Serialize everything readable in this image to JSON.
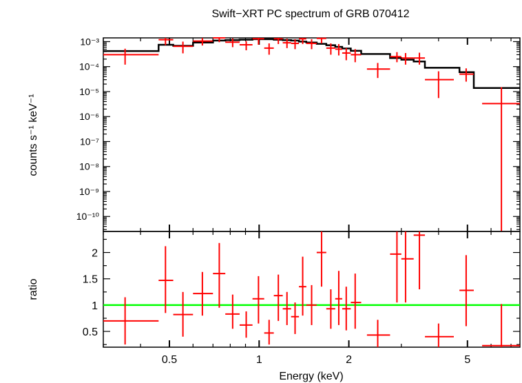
{
  "chart_data": {
    "type": "scatter",
    "title": "Swift−XRT PC spectrum of GRB 070412",
    "xlabel": "Energy (keV)",
    "x_scale": "log",
    "xlim": [
      0.3,
      7.5
    ],
    "x_ticks": [
      {
        "value": 0.5,
        "label": "0.5"
      },
      {
        "value": 1,
        "label": "1"
      },
      {
        "value": 2,
        "label": "2"
      },
      {
        "value": 5,
        "label": "5"
      }
    ],
    "colors": {
      "data": "#ff0000",
      "model": "#000000",
      "unity": "#00ff00"
    },
    "panels": [
      {
        "name": "spectrum",
        "ylabel": "counts s⁻¹ keV⁻¹",
        "y_scale": "log",
        "ylim_log10": [
          -10.6,
          -2.85
        ],
        "y_ticks": [
          {
            "exp": -3,
            "label": "10⁻³"
          },
          {
            "exp": -4,
            "label": "10⁻⁴"
          },
          {
            "exp": -5,
            "label": "10⁻⁵"
          },
          {
            "exp": -6,
            "label": "10⁻⁶"
          },
          {
            "exp": -7,
            "label": "10⁻⁷"
          },
          {
            "exp": -8,
            "label": "10⁻⁸"
          },
          {
            "exp": -9,
            "label": "10⁻⁹"
          },
          {
            "exp": -10,
            "label": "10⁻¹⁰"
          }
        ],
        "series": [
          {
            "kind": "data",
            "points": [
              {
                "x": 0.355,
                "xlo": 0.3,
                "xhi": 0.46,
                "y": 0.0003,
                "ylo": 0.00012,
                "yhi": 0.00052
              },
              {
                "x": 0.485,
                "xlo": 0.46,
                "xhi": 0.515,
                "y": 0.0012,
                "ylo": 0.00072,
                "yhi": 0.0017
              },
              {
                "x": 0.555,
                "xlo": 0.515,
                "xhi": 0.6,
                "y": 0.00065,
                "ylo": 0.00034,
                "yhi": 0.001
              },
              {
                "x": 0.645,
                "xlo": 0.6,
                "xhi": 0.7,
                "y": 0.00105,
                "ylo": 0.0007,
                "yhi": 0.0014
              },
              {
                "x": 0.735,
                "xlo": 0.7,
                "xhi": 0.77,
                "y": 0.0016,
                "ylo": 0.00095,
                "yhi": 0.00225
              },
              {
                "x": 0.815,
                "xlo": 0.77,
                "xhi": 0.86,
                "y": 0.00095,
                "ylo": 0.0006,
                "yhi": 0.00135
              },
              {
                "x": 0.905,
                "xlo": 0.86,
                "xhi": 0.95,
                "y": 0.00075,
                "ylo": 0.00045,
                "yhi": 0.00105
              },
              {
                "x": 0.995,
                "xlo": 0.95,
                "xhi": 1.04,
                "y": 0.0013,
                "ylo": 0.00075,
                "yhi": 0.0019
              },
              {
                "x": 1.08,
                "xlo": 1.04,
                "xhi": 1.12,
                "y": 0.00055,
                "ylo": 0.0003,
                "yhi": 0.00085
              },
              {
                "x": 1.16,
                "xlo": 1.12,
                "xhi": 1.2,
                "y": 0.0013,
                "ylo": 0.0008,
                "yhi": 0.00185
              },
              {
                "x": 1.24,
                "xlo": 1.2,
                "xhi": 1.28,
                "y": 0.0009,
                "ylo": 0.00055,
                "yhi": 0.0013
              },
              {
                "x": 1.32,
                "xlo": 1.28,
                "xhi": 1.36,
                "y": 0.00085,
                "ylo": 0.0005,
                "yhi": 0.00125
              },
              {
                "x": 1.4,
                "xlo": 1.36,
                "xhi": 1.44,
                "y": 0.0013,
                "ylo": 0.0008,
                "yhi": 0.0019
              },
              {
                "x": 1.5,
                "xlo": 1.44,
                "xhi": 1.56,
                "y": 0.00085,
                "ylo": 0.0005,
                "yhi": 0.00125
              },
              {
                "x": 1.62,
                "xlo": 1.56,
                "xhi": 1.68,
                "y": 0.00135,
                "ylo": 0.00085,
                "yhi": 0.00195
              },
              {
                "x": 1.74,
                "xlo": 1.68,
                "xhi": 1.8,
                "y": 0.00055,
                "ylo": 0.0003,
                "yhi": 0.00085
              },
              {
                "x": 1.85,
                "xlo": 1.8,
                "xhi": 1.9,
                "y": 0.0005,
                "ylo": 0.00028,
                "yhi": 0.0008
              },
              {
                "x": 1.96,
                "xlo": 1.9,
                "xhi": 2.03,
                "y": 0.00035,
                "ylo": 0.00018,
                "yhi": 0.00055
              },
              {
                "x": 2.1,
                "xlo": 2.03,
                "xhi": 2.2,
                "y": 0.0003,
                "ylo": 0.00015,
                "yhi": 0.0005
              },
              {
                "x": 2.5,
                "xlo": 2.3,
                "xhi": 2.75,
                "y": 8e-05,
                "ylo": 3.5e-05,
                "yhi": 0.00014
              },
              {
                "x": 2.9,
                "xlo": 2.75,
                "xhi": 3.0,
                "y": 0.00025,
                "ylo": 0.00015,
                "yhi": 0.00038
              },
              {
                "x": 3.1,
                "xlo": 3.0,
                "xhi": 3.3,
                "y": 0.00022,
                "ylo": 0.00012,
                "yhi": 0.00035
              },
              {
                "x": 3.45,
                "xlo": 3.3,
                "xhi": 3.6,
                "y": 0.00022,
                "ylo": 0.00012,
                "yhi": 0.00036
              },
              {
                "x": 4.0,
                "xlo": 3.6,
                "xhi": 4.5,
                "y": 3e-05,
                "ylo": 5.5e-06,
                "yhi": 6.5e-05
              },
              {
                "x": 4.95,
                "xlo": 4.7,
                "xhi": 5.25,
                "y": 5e-05,
                "ylo": 2.5e-05,
                "yhi": 8.5e-05
              },
              {
                "x": 6.5,
                "xlo": 5.6,
                "xhi": 7.5,
                "y": 3.3e-06,
                "ylo": 1e-11,
                "yhi": 1.5e-05
              }
            ]
          },
          {
            "kind": "model",
            "steps": [
              [
                0.3,
                0.00042
              ],
              [
                0.46,
                0.00075
              ],
              [
                0.515,
                0.00068
              ],
              [
                0.6,
                0.00092
              ],
              [
                0.7,
                0.0011
              ],
              [
                0.77,
                0.00115
              ],
              [
                0.86,
                0.0012
              ],
              [
                0.95,
                0.00125
              ],
              [
                1.04,
                0.00125
              ],
              [
                1.12,
                0.0012
              ],
              [
                1.2,
                0.00115
              ],
              [
                1.28,
                0.0011
              ],
              [
                1.36,
                0.001
              ],
              [
                1.44,
                0.00092
              ],
              [
                1.56,
                0.00082
              ],
              [
                1.68,
                0.00072
              ],
              [
                1.8,
                0.00062
              ],
              [
                1.9,
                0.00053
              ],
              [
                2.03,
                0.00043
              ],
              [
                2.2,
                0.00032
              ],
              [
                2.75,
                0.00022
              ],
              [
                3.0,
                0.00019
              ],
              [
                3.3,
                0.00016
              ],
              [
                3.6,
                9e-05
              ],
              [
                4.7,
                6e-05
              ],
              [
                5.25,
                1.4e-05
              ],
              [
                7.5,
                1.4e-05
              ]
            ]
          }
        ]
      },
      {
        "name": "ratio",
        "ylabel": "ratio",
        "y_scale": "linear",
        "ylim": [
          0.2,
          2.4
        ],
        "y_ticks": [
          {
            "value": 0.5,
            "label": "0.5"
          },
          {
            "value": 1,
            "label": "1"
          },
          {
            "value": 1.5,
            "label": "1.5"
          },
          {
            "value": 2,
            "label": "2"
          }
        ],
        "reference_line": 1,
        "series": [
          {
            "kind": "data",
            "points": [
              {
                "x": 0.355,
                "xlo": 0.3,
                "xhi": 0.46,
                "y": 0.7,
                "ylo": 0.25,
                "yhi": 1.15
              },
              {
                "x": 0.485,
                "xlo": 0.46,
                "xhi": 0.515,
                "y": 1.47,
                "ylo": 0.85,
                "yhi": 2.12
              },
              {
                "x": 0.555,
                "xlo": 0.515,
                "xhi": 0.6,
                "y": 0.82,
                "ylo": 0.4,
                "yhi": 1.25
              },
              {
                "x": 0.645,
                "xlo": 0.6,
                "xhi": 0.7,
                "y": 1.22,
                "ylo": 0.8,
                "yhi": 1.63
              },
              {
                "x": 0.735,
                "xlo": 0.7,
                "xhi": 0.77,
                "y": 1.6,
                "ylo": 0.95,
                "yhi": 2.18
              },
              {
                "x": 0.815,
                "xlo": 0.77,
                "xhi": 0.86,
                "y": 0.83,
                "ylo": 0.55,
                "yhi": 1.2
              },
              {
                "x": 0.905,
                "xlo": 0.86,
                "xhi": 0.95,
                "y": 0.62,
                "ylo": 0.38,
                "yhi": 0.88
              },
              {
                "x": 0.995,
                "xlo": 0.95,
                "xhi": 1.04,
                "y": 1.12,
                "ylo": 0.65,
                "yhi": 1.55
              },
              {
                "x": 1.08,
                "xlo": 1.04,
                "xhi": 1.12,
                "y": 0.47,
                "ylo": 0.25,
                "yhi": 0.72
              },
              {
                "x": 1.16,
                "xlo": 1.12,
                "xhi": 1.2,
                "y": 1.18,
                "ylo": 0.7,
                "yhi": 1.58
              },
              {
                "x": 1.24,
                "xlo": 1.2,
                "xhi": 1.28,
                "y": 0.93,
                "ylo": 0.62,
                "yhi": 1.25
              },
              {
                "x": 1.32,
                "xlo": 1.28,
                "xhi": 1.36,
                "y": 0.78,
                "ylo": 0.45,
                "yhi": 1.05
              },
              {
                "x": 1.4,
                "xlo": 1.36,
                "xhi": 1.44,
                "y": 1.35,
                "ylo": 0.8,
                "yhi": 1.92
              },
              {
                "x": 1.5,
                "xlo": 1.44,
                "xhi": 1.56,
                "y": 1.0,
                "ylo": 0.62,
                "yhi": 1.38
              },
              {
                "x": 1.62,
                "xlo": 1.56,
                "xhi": 1.68,
                "y": 2.0,
                "ylo": 1.35,
                "yhi": 2.4
              },
              {
                "x": 1.74,
                "xlo": 1.68,
                "xhi": 1.8,
                "y": 0.93,
                "ylo": 0.55,
                "yhi": 1.3
              },
              {
                "x": 1.85,
                "xlo": 1.8,
                "xhi": 1.9,
                "y": 1.12,
                "ylo": 0.62,
                "yhi": 1.65
              },
              {
                "x": 1.96,
                "xlo": 1.9,
                "xhi": 2.03,
                "y": 0.93,
                "ylo": 0.52,
                "yhi": 1.35
              },
              {
                "x": 2.1,
                "xlo": 2.03,
                "xhi": 2.2,
                "y": 1.05,
                "ylo": 0.55,
                "yhi": 1.6
              },
              {
                "x": 2.5,
                "xlo": 2.3,
                "xhi": 2.75,
                "y": 0.43,
                "ylo": 0.2,
                "yhi": 0.72
              },
              {
                "x": 2.9,
                "xlo": 2.75,
                "xhi": 3.0,
                "y": 1.97,
                "ylo": 1.05,
                "yhi": 2.4
              },
              {
                "x": 3.1,
                "xlo": 3.0,
                "xhi": 3.3,
                "y": 1.88,
                "ylo": 1.05,
                "yhi": 2.4
              },
              {
                "x": 3.45,
                "xlo": 3.3,
                "xhi": 3.6,
                "y": 2.33,
                "ylo": 1.3,
                "yhi": 2.4
              },
              {
                "x": 4.0,
                "xlo": 3.6,
                "xhi": 4.5,
                "y": 0.4,
                "ylo": 0.2,
                "yhi": 0.65
              },
              {
                "x": 4.95,
                "xlo": 4.7,
                "xhi": 5.25,
                "y": 1.28,
                "ylo": 0.6,
                "yhi": 1.95
              },
              {
                "x": 6.5,
                "xlo": 5.6,
                "xhi": 7.5,
                "y": 0.23,
                "ylo": 0.2,
                "yhi": 1.02
              }
            ]
          }
        ]
      }
    ]
  }
}
